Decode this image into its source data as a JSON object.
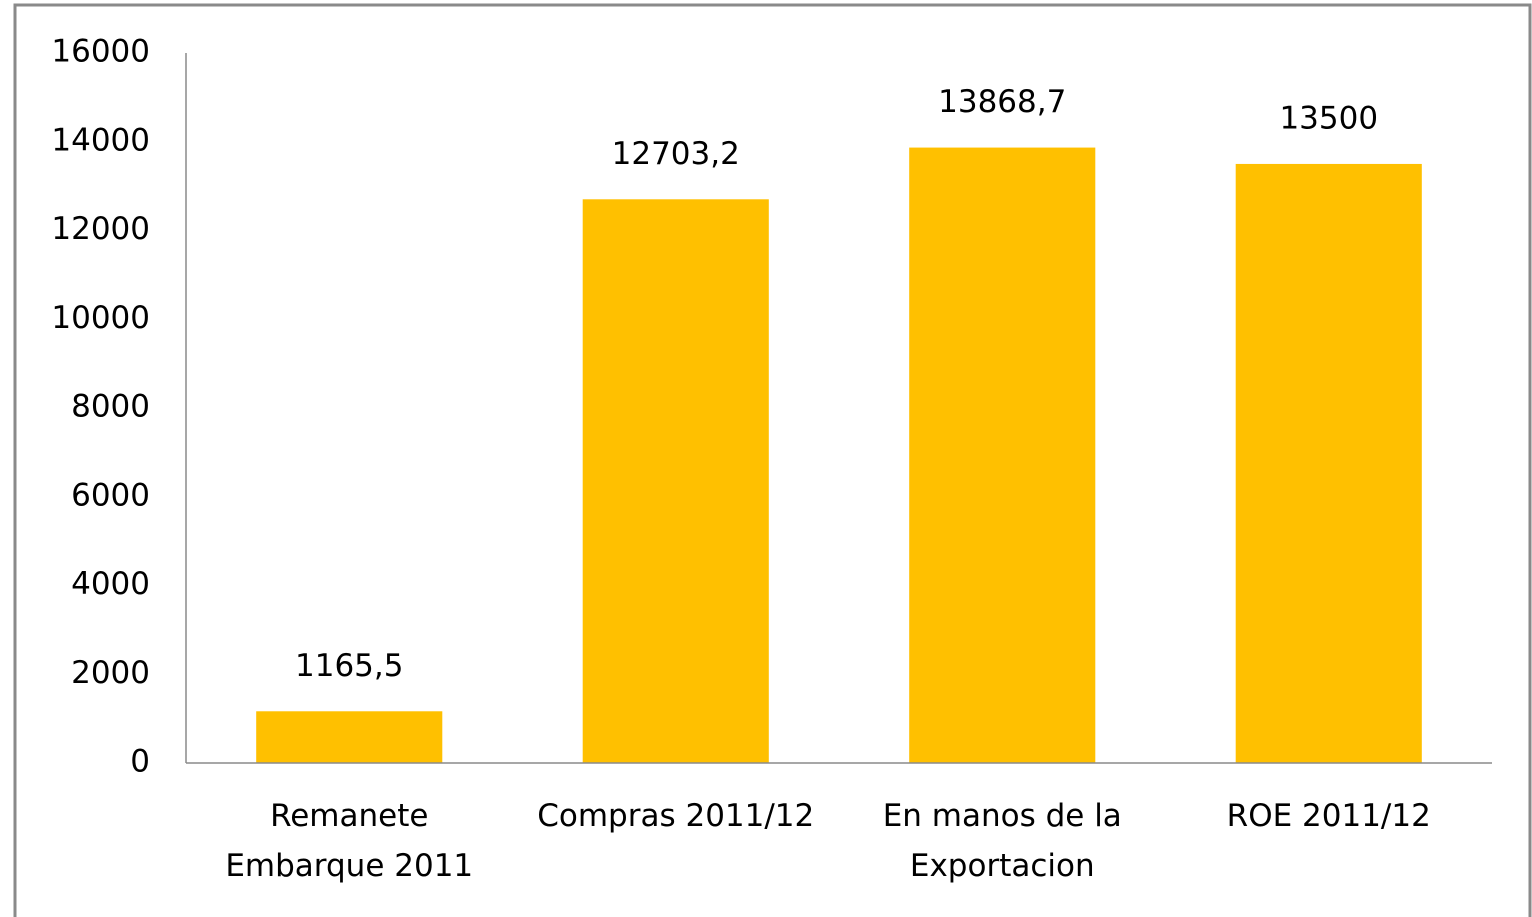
{
  "chart_data": {
    "type": "bar",
    "categories": [
      "Remanete\nEmbarque 2011",
      "Compras 2011/12",
      "En manos de la\nExportacion",
      "ROE 2011/12"
    ],
    "values": [
      1165.5,
      12703.2,
      13868.7,
      13500
    ],
    "value_labels": [
      "1165,5",
      "12703,2",
      "13868,7",
      "13500"
    ],
    "color": "#ffc000",
    "ylim": [
      0,
      16000
    ],
    "yticks": [
      0,
      2000,
      4000,
      6000,
      8000,
      10000,
      12000,
      14000,
      16000
    ],
    "grid": false
  }
}
